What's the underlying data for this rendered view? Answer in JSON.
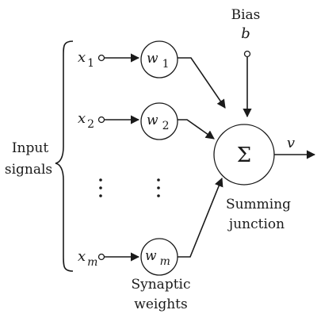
{
  "inputs": [
    {
      "var": "x",
      "sub": "1",
      "weight": "w",
      "weight_sub": "1"
    },
    {
      "var": "x",
      "sub": "2",
      "weight": "w",
      "weight_sub": "2"
    },
    {
      "var": "x",
      "sub": "m",
      "weight": "w",
      "weight_sub": "m"
    }
  ],
  "labels": {
    "input_signals_line1": "Input",
    "input_signals_line2": "signals",
    "bias_word": "Bias",
    "bias_symbol": "b",
    "summing_symbol": "Σ",
    "summing_line1": "Summing",
    "summing_line2": "junction",
    "synaptic_line1": "Synaptic",
    "synaptic_line2": "weights",
    "output_symbol": "v"
  }
}
